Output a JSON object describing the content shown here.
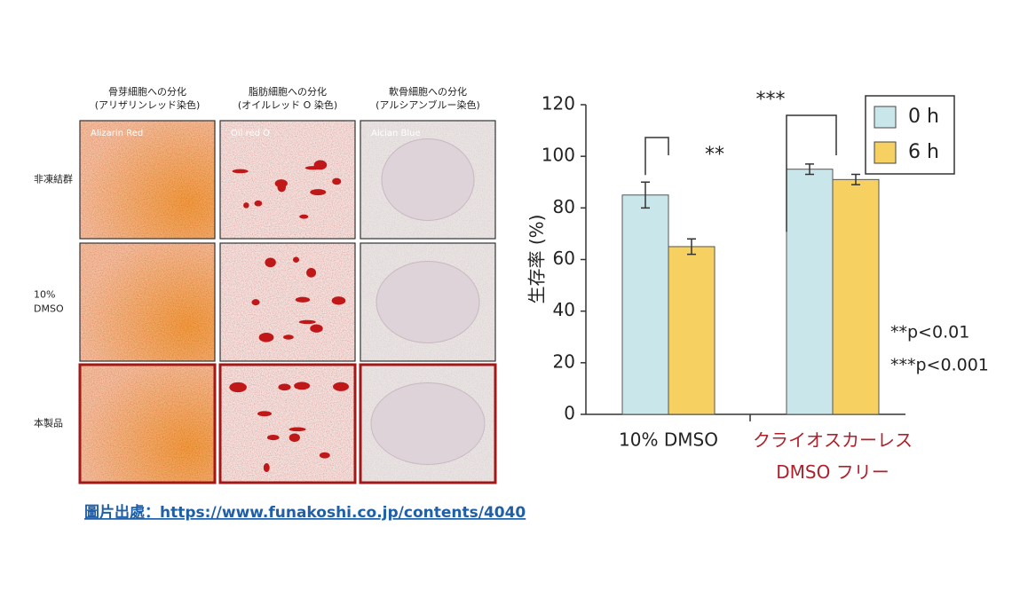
{
  "panel": {
    "columns": [
      "骨芽細胞への分化\n(アリザリンレッド染色)",
      "脂肪細胞への分化\n(オイルレッド O 染色)",
      "軟骨細胞への分化\n(アルシアンブルー染色)"
    ],
    "stains": [
      "Alizarin Red",
      "Oil red O",
      "Alcian Blue"
    ],
    "rows": [
      "非凍結群",
      "10%\nDMSO",
      "本製品"
    ]
  },
  "caption": "圖片出處：https://www.funakoshi.co.jp/contents/4040",
  "chart_data": {
    "type": "bar",
    "ylabel": "生存率 (%)",
    "categories": [
      "10% DMSO",
      "クライオスカーレス\nDMSO フリー"
    ],
    "category_colors": [
      "#222222",
      "#b0202a"
    ],
    "series": [
      {
        "name": "0 h",
        "color": "#c9e7ea",
        "values": [
          85,
          95
        ],
        "errors": [
          5,
          2
        ]
      },
      {
        "name": "6 h",
        "color": "#f6d060",
        "values": [
          65,
          91
        ],
        "errors": [
          3,
          2
        ]
      }
    ],
    "ylim": [
      0,
      120
    ],
    "yticks": [
      0,
      20,
      40,
      60,
      80,
      100,
      120
    ],
    "legend": "upper right",
    "annotations": [
      "**",
      "***",
      "**p<0.01",
      "***p<0.001"
    ]
  }
}
